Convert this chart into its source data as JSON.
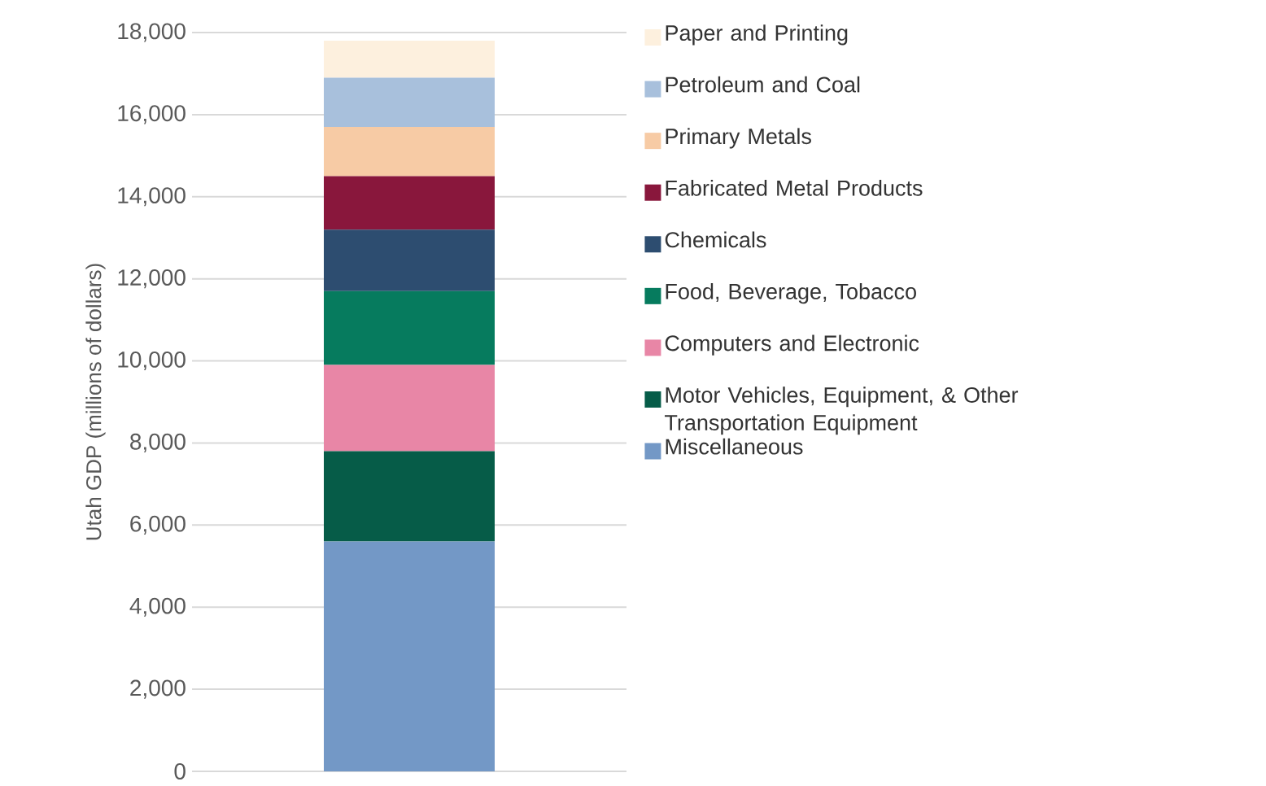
{
  "chart_data": {
    "type": "bar",
    "stacked": true,
    "ylabel": "Utah GDP (millions of dollars)",
    "categories": [
      null
    ],
    "series": [
      {
        "name": "Miscellaneous",
        "color": "#7398c6",
        "values": [
          5600
        ]
      },
      {
        "name": "Motor Vehicles, Equipment, & Other Transportation Equipment",
        "color": "#065c48",
        "values": [
          2200
        ]
      },
      {
        "name": "Computers and Electronic",
        "color": "#e886a6",
        "values": [
          2100
        ]
      },
      {
        "name": "Food, Beverage, Tobacco",
        "color": "#067b5e",
        "values": [
          1800
        ]
      },
      {
        "name": "Chemicals",
        "color": "#2d4d70",
        "values": [
          1500
        ]
      },
      {
        "name": "Fabricated Metal Products",
        "color": "#89173c",
        "values": [
          1300
        ]
      },
      {
        "name": "Primary Metals",
        "color": "#f7cba5",
        "values": [
          1200
        ]
      },
      {
        "name": "Petroleum and Coal",
        "color": "#a8c0dc",
        "values": [
          1200
        ]
      },
      {
        "name": "Paper and Printing",
        "color": "#fdf0de",
        "values": [
          900
        ]
      }
    ],
    "ylim": [
      0,
      18000
    ],
    "yticks": [
      0,
      {
        "value": 2000,
        "label": "2,000"
      },
      {
        "value": 4000,
        "label": "4,000"
      },
      {
        "value": 6000,
        "label": "6,000"
      },
      {
        "value": 8000,
        "label": "8,000"
      },
      {
        "value": 10000,
        "label": "10,000"
      },
      {
        "value": 12000,
        "label": "12,000"
      },
      {
        "value": 14000,
        "label": "14,000"
      },
      {
        "value": 16000,
        "label": "16,000"
      },
      {
        "value": 18000,
        "label": "18,000"
      }
    ],
    "grid": "y",
    "legend": "right"
  }
}
